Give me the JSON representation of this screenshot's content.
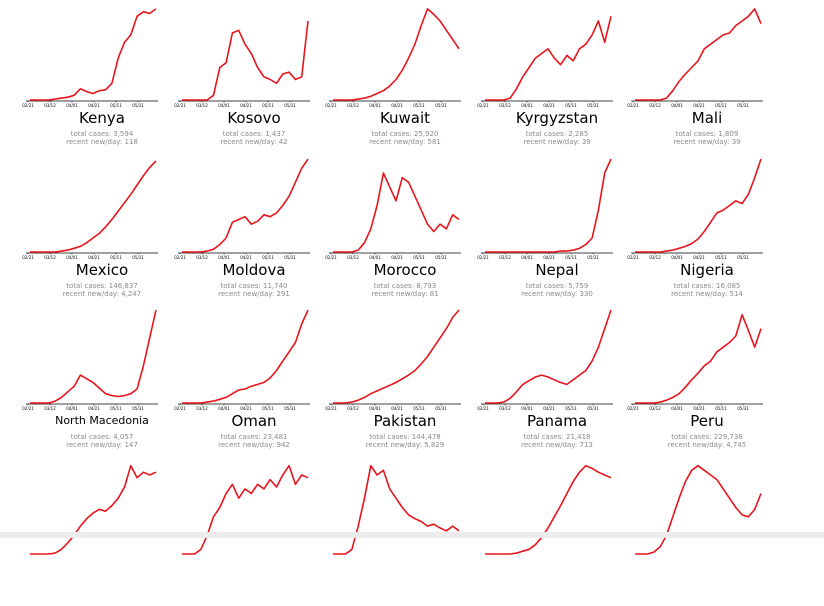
{
  "chart_data": [
    {
      "type": "line",
      "title": "Kenya",
      "total_cases_text": "total cases: 3,594",
      "recent_text": "recent new/day: 118",
      "x_ticks": [
        "02/21",
        "03/12",
        "04/01",
        "04/21",
        "05/11",
        "05/31"
      ],
      "series": [
        {
          "values": [
            0,
            0,
            0,
            0,
            0.01,
            0.02,
            0.03,
            0.05,
            0.12,
            0.09,
            0.07,
            0.1,
            0.11,
            0.18,
            0.45,
            0.62,
            0.7,
            0.9,
            0.95,
            0.93,
            0.98
          ]
        }
      ]
    },
    {
      "type": "line",
      "title": "Kosovo",
      "total_cases_text": "total cases: 1,437",
      "recent_text": "recent new/day: 42",
      "x_ticks": [
        "02/21",
        "03/12",
        "04/01",
        "04/21",
        "05/11",
        "05/31"
      ],
      "series": [
        {
          "values": [
            0,
            0,
            0,
            0,
            0,
            0.05,
            0.35,
            0.4,
            0.72,
            0.75,
            0.6,
            0.5,
            0.35,
            0.25,
            0.22,
            0.18,
            0.28,
            0.3,
            0.22,
            0.25,
            0.85
          ]
        }
      ]
    },
    {
      "type": "line",
      "title": "Kuwait",
      "total_cases_text": "total cases: 25,920",
      "recent_text": "recent new/day: 581",
      "x_ticks": [
        "02/21",
        "03/12",
        "04/01",
        "04/21",
        "05/11",
        "05/31"
      ],
      "series": [
        {
          "values": [
            0,
            0,
            0,
            0,
            0.01,
            0.02,
            0.04,
            0.07,
            0.1,
            0.15,
            0.22,
            0.32,
            0.45,
            0.6,
            0.8,
            0.98,
            0.92,
            0.85,
            0.75,
            0.65,
            0.55
          ]
        }
      ]
    },
    {
      "type": "line",
      "title": "Kyrgyzstan",
      "total_cases_text": "total cases: 2,285",
      "recent_text": "recent new/day: 39",
      "x_ticks": [
        "02/21",
        "03/12",
        "04/01",
        "04/21",
        "05/11",
        "05/31"
      ],
      "series": [
        {
          "values": [
            0,
            0,
            0,
            0,
            0.02,
            0.12,
            0.25,
            0.35,
            0.45,
            0.5,
            0.55,
            0.45,
            0.38,
            0.48,
            0.42,
            0.55,
            0.6,
            0.7,
            0.85,
            0.62,
            0.9
          ]
        }
      ]
    },
    {
      "type": "line",
      "title": "Mali",
      "total_cases_text": "total cases: 1,809",
      "recent_text": "recent new/day: 39",
      "x_ticks": [
        "02/21",
        "03/12",
        "04/01",
        "04/21",
        "05/11",
        "05/31"
      ],
      "series": [
        {
          "values": [
            0,
            0,
            0,
            0,
            0,
            0.02,
            0.1,
            0.2,
            0.28,
            0.35,
            0.42,
            0.55,
            0.6,
            0.65,
            0.7,
            0.72,
            0.8,
            0.85,
            0.9,
            0.98,
            0.82
          ]
        }
      ]
    },
    {
      "type": "line",
      "title": "Mexico",
      "total_cases_text": "total cases: 146,837",
      "recent_text": "recent new/day: 4,247",
      "x_ticks": [
        "02/21",
        "03/12",
        "04/01",
        "04/21",
        "05/11",
        "05/31"
      ],
      "series": [
        {
          "values": [
            0,
            0,
            0,
            0,
            0,
            0.01,
            0.02,
            0.04,
            0.06,
            0.1,
            0.15,
            0.2,
            0.27,
            0.35,
            0.44,
            0.53,
            0.62,
            0.72,
            0.82,
            0.91,
            0.98
          ]
        }
      ]
    },
    {
      "type": "line",
      "title": "Moldova",
      "total_cases_text": "total cases: 11,740",
      "recent_text": "recent new/day: 291",
      "x_ticks": [
        "02/21",
        "03/12",
        "04/01",
        "04/21",
        "05/11",
        "05/31"
      ],
      "series": [
        {
          "values": [
            0,
            0,
            0,
            0,
            0.01,
            0.03,
            0.08,
            0.15,
            0.32,
            0.35,
            0.38,
            0.3,
            0.33,
            0.4,
            0.38,
            0.42,
            0.5,
            0.6,
            0.75,
            0.9,
            1.0
          ]
        }
      ]
    },
    {
      "type": "line",
      "title": "Morocco",
      "total_cases_text": "total cases: 8,793",
      "recent_text": "recent new/day: 81",
      "x_ticks": [
        "02/21",
        "03/12",
        "04/01",
        "04/21",
        "05/11",
        "05/31"
      ],
      "series": [
        {
          "values": [
            0,
            0,
            0,
            0,
            0.02,
            0.1,
            0.25,
            0.5,
            0.85,
            0.7,
            0.55,
            0.8,
            0.75,
            0.6,
            0.45,
            0.3,
            0.22,
            0.3,
            0.25,
            0.4,
            0.35
          ]
        }
      ]
    },
    {
      "type": "line",
      "title": "Nepal",
      "total_cases_text": "total cases: 5,759",
      "recent_text": "recent new/day: 330",
      "x_ticks": [
        "02/21",
        "03/12",
        "04/01",
        "04/21",
        "05/11",
        "05/31"
      ],
      "series": [
        {
          "values": [
            0,
            0,
            0,
            0,
            0,
            0,
            0,
            0,
            0,
            0,
            0,
            0,
            0.01,
            0.01,
            0.02,
            0.04,
            0.08,
            0.15,
            0.45,
            0.85,
            1.0
          ]
        }
      ]
    },
    {
      "type": "line",
      "title": "Nigeria",
      "total_cases_text": "total cases: 16,085",
      "recent_text": "recent new/day: 514",
      "x_ticks": [
        "02/21",
        "03/12",
        "04/01",
        "04/21",
        "05/11",
        "05/31"
      ],
      "series": [
        {
          "values": [
            0,
            0,
            0,
            0,
            0,
            0.01,
            0.02,
            0.04,
            0.06,
            0.09,
            0.14,
            0.22,
            0.32,
            0.42,
            0.45,
            0.5,
            0.55,
            0.52,
            0.62,
            0.8,
            1.0
          ]
        }
      ]
    },
    {
      "type": "line",
      "title": "North Macedonia",
      "total_cases_text": "total cases: 4,057",
      "recent_text": "recent new/day: 147",
      "x_ticks": [
        "02/21",
        "03/12",
        "04/01",
        "04/21",
        "05/11",
        "05/31"
      ],
      "series": [
        {
          "values": [
            0,
            0,
            0,
            0,
            0.02,
            0.06,
            0.12,
            0.18,
            0.3,
            0.26,
            0.22,
            0.16,
            0.1,
            0.08,
            0.07,
            0.08,
            0.1,
            0.15,
            0.4,
            0.7,
            1.0
          ]
        }
      ]
    },
    {
      "type": "line",
      "title": "Oman",
      "total_cases_text": "total cases: 23,481",
      "recent_text": "recent new/day: 942",
      "x_ticks": [
        "02/21",
        "03/12",
        "04/01",
        "04/21",
        "05/11",
        "05/31"
      ],
      "series": [
        {
          "values": [
            0,
            0,
            0,
            0,
            0.01,
            0.02,
            0.04,
            0.06,
            0.1,
            0.14,
            0.15,
            0.18,
            0.2,
            0.22,
            0.27,
            0.35,
            0.45,
            0.55,
            0.65,
            0.85,
            1.0
          ]
        }
      ]
    },
    {
      "type": "line",
      "title": "Pakistan",
      "total_cases_text": "total cases: 144,478",
      "recent_text": "recent new/day: 5,829",
      "x_ticks": [
        "02/21",
        "03/12",
        "04/01",
        "04/21",
        "05/11",
        "05/31"
      ],
      "series": [
        {
          "values": [
            0,
            0,
            0,
            0.01,
            0.03,
            0.06,
            0.1,
            0.13,
            0.16,
            0.19,
            0.22,
            0.26,
            0.3,
            0.35,
            0.42,
            0.5,
            0.6,
            0.7,
            0.8,
            0.92,
            1.0
          ]
        }
      ]
    },
    {
      "type": "line",
      "title": "Panama",
      "total_cases_text": "total cases: 21,418",
      "recent_text": "recent new/day: 713",
      "x_ticks": [
        "02/21",
        "03/12",
        "04/01",
        "04/21",
        "05/11",
        "05/31"
      ],
      "series": [
        {
          "values": [
            0,
            0,
            0,
            0.01,
            0.05,
            0.12,
            0.2,
            0.24,
            0.28,
            0.3,
            0.28,
            0.25,
            0.22,
            0.2,
            0.25,
            0.3,
            0.35,
            0.45,
            0.6,
            0.8,
            1.0
          ]
        }
      ]
    },
    {
      "type": "line",
      "title": "Peru",
      "total_cases_text": "total cases: 229,736",
      "recent_text": "recent new/day: 4,745",
      "x_ticks": [
        "02/21",
        "03/12",
        "04/01",
        "04/21",
        "05/11",
        "05/31"
      ],
      "series": [
        {
          "values": [
            0,
            0,
            0,
            0,
            0.01,
            0.03,
            0.06,
            0.1,
            0.17,
            0.25,
            0.32,
            0.4,
            0.45,
            0.55,
            0.6,
            0.65,
            0.72,
            0.95,
            0.78,
            0.6,
            0.8
          ]
        }
      ]
    },
    {
      "type": "line",
      "title": "",
      "series": [
        {
          "values": [
            0,
            0,
            0,
            0,
            0.01,
            0.05,
            0.12,
            0.2,
            0.3,
            0.38,
            0.44,
            0.48,
            0.46,
            0.52,
            0.6,
            0.72,
            0.95,
            0.82,
            0.88,
            0.85,
            0.88
          ]
        }
      ]
    },
    {
      "type": "line",
      "title": "",
      "series": [
        {
          "values": [
            0,
            0,
            0,
            0.05,
            0.2,
            0.4,
            0.5,
            0.65,
            0.75,
            0.6,
            0.7,
            0.65,
            0.75,
            0.7,
            0.8,
            0.72,
            0.85,
            0.95,
            0.75,
            0.85,
            0.82
          ]
        }
      ]
    },
    {
      "type": "line",
      "title": "",
      "series": [
        {
          "values": [
            0,
            0,
            0,
            0.05,
            0.3,
            0.6,
            0.95,
            0.85,
            0.9,
            0.7,
            0.6,
            0.5,
            0.42,
            0.38,
            0.35,
            0.3,
            0.32,
            0.28,
            0.25,
            0.3,
            0.25
          ]
        }
      ]
    },
    {
      "type": "line",
      "title": "",
      "series": [
        {
          "values": [
            0,
            0,
            0,
            0,
            0,
            0.01,
            0.03,
            0.05,
            0.1,
            0.18,
            0.28,
            0.4,
            0.52,
            0.65,
            0.78,
            0.88,
            0.95,
            0.92,
            0.88,
            0.85,
            0.82
          ]
        }
      ]
    },
    {
      "type": "line",
      "title": "",
      "series": [
        {
          "values": [
            0,
            0,
            0,
            0.02,
            0.08,
            0.2,
            0.4,
            0.6,
            0.78,
            0.9,
            0.95,
            0.9,
            0.85,
            0.8,
            0.7,
            0.6,
            0.5,
            0.42,
            0.4,
            0.48,
            0.65
          ]
        }
      ]
    }
  ],
  "line_color": "#e8141b"
}
